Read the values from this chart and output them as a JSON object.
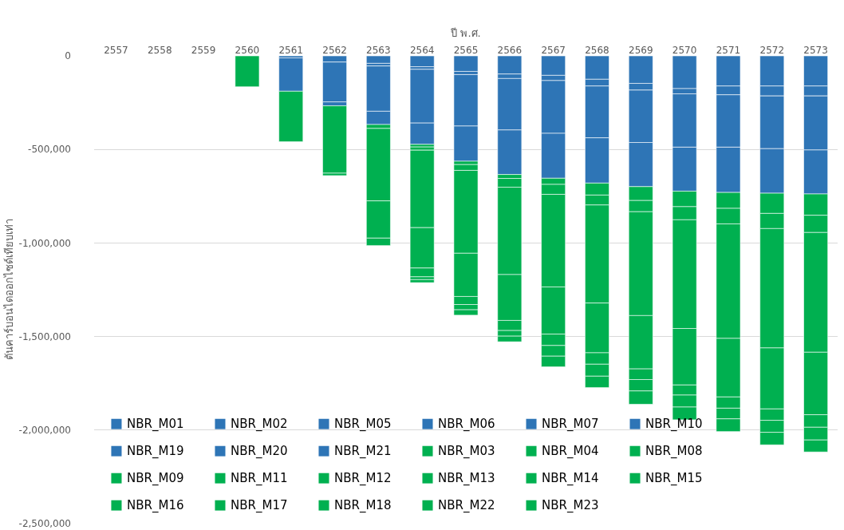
{
  "chart_data": {
    "type": "bar",
    "stacked": true,
    "xlabel": "ปี พ.ศ.",
    "ylabel": "ตันคาร์บอนไดออกไซด์เทียบเท่า",
    "categories": [
      "2557",
      "2558",
      "2559",
      "2560",
      "2561",
      "2562",
      "2563",
      "2564",
      "2565",
      "2566",
      "2567",
      "2568",
      "2569",
      "2570",
      "2571",
      "2572",
      "2573"
    ],
    "ylim": [
      -2500000,
      0
    ],
    "yticks": [
      {
        "value": 0,
        "label": "0"
      },
      {
        "value": -500000,
        "label": "-500,000"
      },
      {
        "value": -1000000,
        "label": "-1,000,000"
      },
      {
        "value": -1500000,
        "label": "-1,500,000"
      },
      {
        "value": -2000000,
        "label": "-2,000,000"
      },
      {
        "value": -2500000,
        "label": "-2,500,000"
      }
    ],
    "grid": "y",
    "legend": "bottom left",
    "series": [
      {
        "name": "NBR_M01",
        "color": "#2e75b6",
        "values": [
          null,
          null,
          null,
          null,
          null,
          -33000,
          -40000,
          -58000,
          -83000,
          -97000,
          -104000,
          -125000,
          -147000,
          -175000,
          -161000,
          -161000,
          -161000
        ]
      },
      {
        "name": "NBR_M02",
        "color": "#2e75b6",
        "values": [
          null,
          null,
          null,
          null,
          -11000,
          null,
          -14000,
          -14000,
          -17000,
          -24000,
          -28000,
          -36000,
          -36000,
          -28000,
          -47000,
          -53000,
          -53000
        ]
      },
      {
        "name": "NBR_M05",
        "color": "#2e75b6",
        "values": [
          null,
          null,
          null,
          null,
          null,
          null,
          null,
          null,
          null,
          null,
          null,
          null,
          null,
          null,
          null,
          null,
          null
        ]
      },
      {
        "name": "NBR_M06",
        "color": "#2e75b6",
        "values": [
          null,
          null,
          null,
          null,
          null,
          null,
          null,
          null,
          null,
          null,
          null,
          null,
          null,
          null,
          null,
          null,
          null
        ]
      },
      {
        "name": "NBR_M07",
        "color": "#2e75b6",
        "values": [
          null,
          null,
          null,
          null,
          null,
          null,
          null,
          null,
          null,
          null,
          null,
          null,
          null,
          null,
          null,
          null,
          null
        ]
      },
      {
        "name": "NBR_M10",
        "color": "#2e75b6",
        "values": [
          null,
          null,
          null,
          null,
          null,
          null,
          null,
          null,
          null,
          null,
          null,
          null,
          null,
          null,
          null,
          null,
          null
        ]
      },
      {
        "name": "NBR_M19",
        "color": "#2e75b6",
        "values": [
          null,
          null,
          null,
          null,
          -178000,
          -213000,
          -242000,
          -287000,
          -275000,
          -275000,
          -282000,
          -277000,
          -280000,
          -285000,
          -280000,
          -282000,
          -289000
        ]
      },
      {
        "name": "NBR_M20",
        "color": "#2e75b6",
        "values": [
          null,
          null,
          null,
          null,
          null,
          null,
          null,
          null,
          null,
          null,
          null,
          null,
          null,
          null,
          null,
          null,
          null
        ]
      },
      {
        "name": "NBR_M21",
        "color": "#2e75b6",
        "values": [
          null,
          null,
          null,
          null,
          null,
          -21000,
          -71000,
          -114000,
          -188000,
          -238000,
          -240000,
          -242000,
          -236000,
          -235000,
          -242000,
          -238000,
          -235000
        ]
      },
      {
        "name": "NBR_M03",
        "color": "#00b050",
        "values": [
          null,
          null,
          null,
          null,
          null,
          null,
          -21000,
          -14000,
          -18000,
          -21000,
          -33000,
          -64000,
          -74000,
          -83000,
          -85000,
          -108000,
          -114000
        ]
      },
      {
        "name": "NBR_M04",
        "color": "#00b050",
        "values": [
          null,
          null,
          null,
          null,
          null,
          null,
          null,
          -17000,
          -31000,
          -47000,
          -53000,
          -53000,
          -60000,
          -70000,
          -83000,
          -81000,
          -92000
        ]
      },
      {
        "name": "NBR_M08",
        "color": "#00b050",
        "values": [
          null,
          null,
          null,
          null,
          null,
          null,
          null,
          null,
          null,
          null,
          null,
          null,
          null,
          null,
          null,
          null,
          null
        ]
      },
      {
        "name": "NBR_M09",
        "color": "#00b050",
        "values": [
          null,
          null,
          null,
          null,
          null,
          null,
          null,
          null,
          null,
          null,
          null,
          null,
          null,
          null,
          null,
          null,
          null
        ]
      },
      {
        "name": "NBR_M11",
        "color": "#00b050",
        "values": [
          null,
          null,
          null,
          -165000,
          -270000,
          -360000,
          -387000,
          -414000,
          -443000,
          -467000,
          -495000,
          -524000,
          -555000,
          -581000,
          -612000,
          -638000,
          -640000
        ]
      },
      {
        "name": "NBR_M12",
        "color": "#00b050",
        "values": [
          null,
          null,
          null,
          null,
          null,
          null,
          -199000,
          -216000,
          -231000,
          -245000,
          -252000,
          -266000,
          -285000,
          -302000,
          -313000,
          -326000,
          -334000
        ]
      },
      {
        "name": "NBR_M13",
        "color": "#00b050",
        "values": [
          null,
          null,
          null,
          null,
          null,
          null,
          null,
          null,
          null,
          null,
          null,
          null,
          null,
          null,
          null,
          null,
          null
        ]
      },
      {
        "name": "NBR_M14",
        "color": "#00b050",
        "values": [
          null,
          null,
          null,
          null,
          null,
          null,
          null,
          null,
          null,
          null,
          null,
          null,
          null,
          null,
          null,
          null,
          null
        ]
      },
      {
        "name": "NBR_M15",
        "color": "#00b050",
        "values": [
          null,
          null,
          null,
          null,
          null,
          null,
          null,
          null,
          null,
          null,
          null,
          null,
          null,
          null,
          null,
          null,
          null
        ]
      },
      {
        "name": "NBR_M16",
        "color": "#00b050",
        "values": [
          null,
          null,
          null,
          null,
          null,
          null,
          null,
          null,
          null,
          null,
          null,
          null,
          null,
          null,
          null,
          null,
          null
        ]
      },
      {
        "name": "NBR_M17",
        "color": "#00b050",
        "values": [
          null,
          null,
          null,
          null,
          null,
          -13000,
          -40000,
          -47000,
          -43000,
          -54000,
          -61000,
          -61000,
          -57000,
          -54000,
          -60000,
          -61000,
          -67000
        ]
      },
      {
        "name": "NBR_M18",
        "color": "#00b050",
        "values": [
          null,
          null,
          null,
          null,
          null,
          null,
          null,
          -15000,
          -28000,
          -30000,
          -57000,
          -64000,
          -61000,
          -64000,
          -57000,
          -64000,
          -68000
        ]
      },
      {
        "name": "NBR_M22",
        "color": "#00b050",
        "values": [
          null,
          null,
          null,
          null,
          null,
          null,
          null,
          -16000,
          -29000,
          -30000,
          -57000,
          -61000,
          -71000,
          -68000,
          -68000,
          -67000,
          -64000
        ]
      },
      {
        "name": "NBR_M23",
        "color": "#00b050",
        "values": [
          null,
          null,
          null,
          null,
          null,
          null,
          null,
          null,
          null,
          null,
          null,
          null,
          null,
          null,
          null,
          null,
          null
        ]
      }
    ]
  }
}
